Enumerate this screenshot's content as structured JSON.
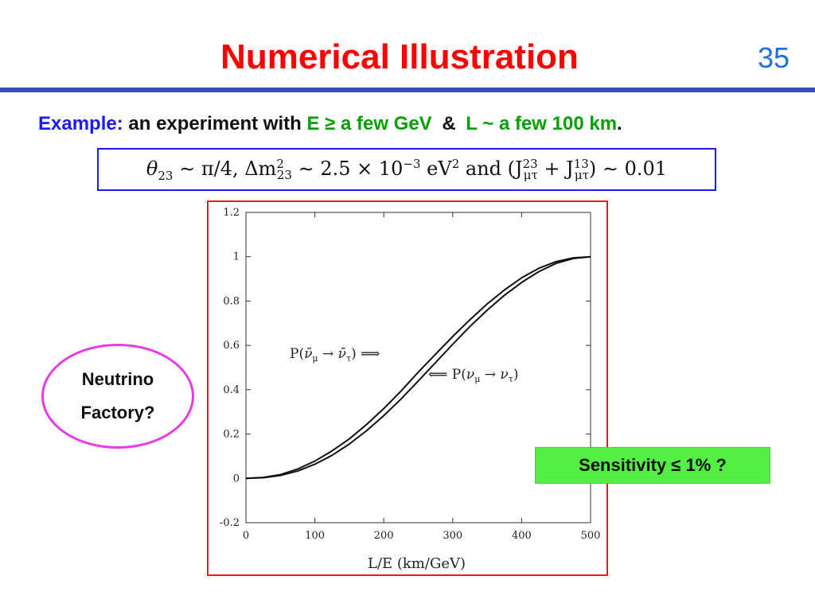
{
  "slide": {
    "title": "Numerical Illustration",
    "number": "35"
  },
  "example": {
    "label": "Example:",
    "text": "an experiment with",
    "energy": "E ≥ a few GeV",
    "amp": "&",
    "baseline": "L ~ a few 100 km",
    "period": "."
  },
  "formula": {
    "theta": "θ",
    "theta_sub": "23",
    "part1": " ∼ π/4,  Δm",
    "dm_sup": "2",
    "dm_sub": "23",
    "part2": " ∼ 2.5 × 10",
    "exp": "−3",
    "part3": " eV",
    "ev_sup": "2",
    "part4": " and (J",
    "j1_sup": "23",
    "j1_sub": "μτ",
    "part5": " + J",
    "j2_sup": "13",
    "j2_sub": "μτ",
    "part6": ") ∼ 0.01"
  },
  "callouts": {
    "factory_line1": "Neutrino",
    "factory_line2": "Factory?",
    "sensitivity": "Sensitivity ≤ 1% ?"
  },
  "colors": {
    "title": "#ff0000",
    "rule": "#3a4bc9",
    "keyword": "#1a1aff",
    "green_text": "#00a000",
    "plot_frame": "#e02020",
    "ellipse": "#e63ce6",
    "sensitivity_bg": "#55ee44"
  },
  "chart_data": {
    "type": "line",
    "xlabel": "L/E (km/GeV)",
    "ylabel": "",
    "xlim": [
      0,
      500
    ],
    "ylim": [
      -0.2,
      1.2
    ],
    "xticks": [
      "0",
      "100",
      "200",
      "300",
      "400",
      "500"
    ],
    "yticks": [
      "-0.2",
      "0",
      "0.2",
      "0.4",
      "0.6",
      "0.8",
      "1",
      "1.2"
    ],
    "grid": false,
    "series": [
      {
        "name": "P(ν̄μ → ν̄τ)",
        "x": [
          0,
          25,
          50,
          75,
          100,
          125,
          150,
          175,
          200,
          225,
          250,
          275,
          300,
          325,
          350,
          375,
          400,
          425,
          450,
          475,
          500
        ],
        "y": [
          0.0,
          0.004,
          0.017,
          0.042,
          0.078,
          0.124,
          0.178,
          0.243,
          0.315,
          0.394,
          0.479,
          0.56,
          0.64,
          0.716,
          0.787,
          0.85,
          0.905,
          0.948,
          0.978,
          0.995,
          1.0
        ]
      },
      {
        "name": "P(νμ → ντ)",
        "x": [
          0,
          25,
          50,
          75,
          100,
          125,
          150,
          175,
          200,
          225,
          250,
          275,
          300,
          325,
          350,
          375,
          400,
          425,
          450,
          475,
          500
        ],
        "y": [
          0.0,
          0.003,
          0.013,
          0.033,
          0.064,
          0.104,
          0.155,
          0.215,
          0.283,
          0.358,
          0.439,
          0.522,
          0.605,
          0.685,
          0.759,
          0.826,
          0.884,
          0.933,
          0.97,
          0.992,
          1.0
        ]
      }
    ],
    "annotations": [
      {
        "text_pre": "P(",
        "nu": "ν̄",
        "nu_sub": "μ",
        "arrow": " → ",
        "nu2": "ν̄",
        "nu2_sub": "τ",
        "text_post": ") ⟹"
      },
      {
        "text_pre": "⟸ P(",
        "nu": "ν",
        "nu_sub": "μ",
        "arrow": " → ",
        "nu2": "ν",
        "nu2_sub": "τ",
        "text_post": ")"
      }
    ]
  }
}
